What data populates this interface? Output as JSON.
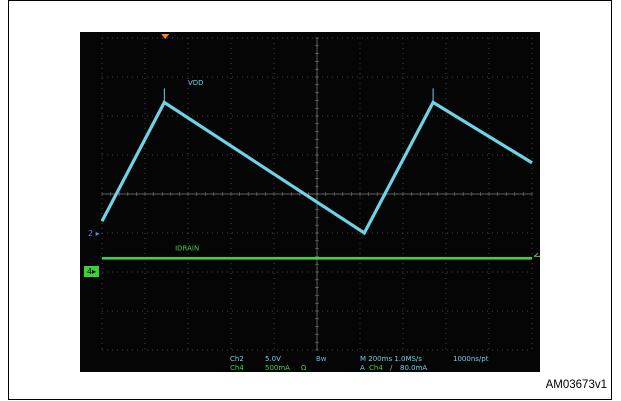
{
  "figure_code": "AM03673v1",
  "colors": {
    "vdd": "#6fd3e6",
    "idrain": "#3fd13f",
    "grid": "#5a5a5a",
    "background": "#050505"
  },
  "markers": {
    "ch2": "2",
    "ch4": "4"
  },
  "status": {
    "ch2_name": "Ch2",
    "ch2_scale": "5.0V",
    "ch4_name": "Ch4",
    "ch4_scale": "500mA",
    "ch4_impedance": "Ω",
    "bw": "Bw",
    "timebase": "M 200ms 1.0MS/s",
    "resolution": "1000ns/pt",
    "trigger_mode": "A",
    "trigger_source": "Ch4",
    "trigger_slope": "∕",
    "trigger_level": "80.0mA"
  },
  "chart_data": {
    "type": "line",
    "grid": true,
    "xlim": [
      0,
      10
    ],
    "ylim": [
      0,
      8
    ],
    "x_unit": "div",
    "y_unit": "div",
    "series": [
      {
        "name": "VDD",
        "x": [
          0,
          1.45,
          6.1,
          7.7,
          10
        ],
        "y": [
          3.3,
          6.35,
          3.0,
          6.35,
          4.8
        ]
      },
      {
        "name": "IDRAIN",
        "x": [
          0,
          10
        ],
        "y": [
          2.35,
          2.35
        ]
      }
    ]
  }
}
